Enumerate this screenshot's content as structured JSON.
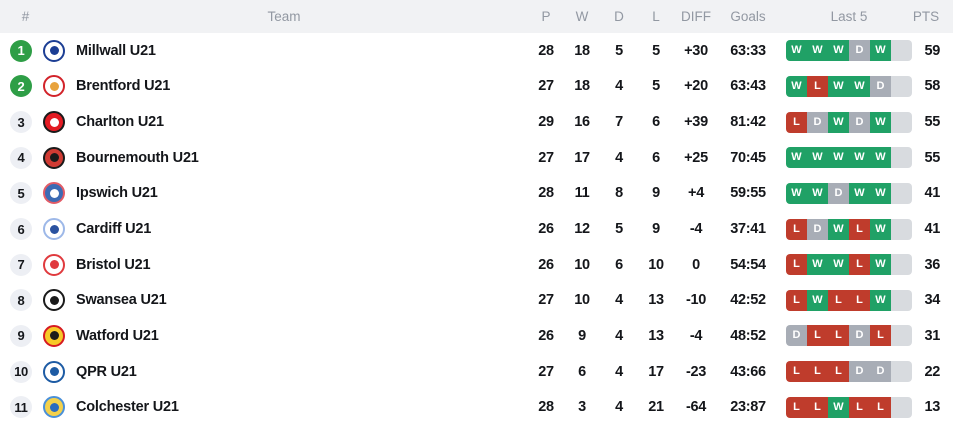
{
  "table": {
    "headers": {
      "rank": "#",
      "team": "Team",
      "played": "P",
      "wins": "W",
      "draws": "D",
      "losses": "L",
      "diff": "DIFF",
      "goals": "Goals",
      "last5": "Last 5",
      "points": "PTS"
    },
    "rows": [
      {
        "rank": "1",
        "promoted": true,
        "team": "Millwall U21",
        "p": "28",
        "w": "18",
        "d": "5",
        "l": "5",
        "diff": "+30",
        "goals": "63:33",
        "last5": [
          "W",
          "W",
          "W",
          "D",
          "W",
          ""
        ],
        "pts": "59",
        "logo": {
          "ring": "#1c3e94",
          "fill": "#ffffff",
          "accent": "#1c3e94"
        }
      },
      {
        "rank": "2",
        "promoted": true,
        "team": "Brentford U21",
        "p": "27",
        "w": "18",
        "d": "4",
        "l": "5",
        "diff": "+20",
        "goals": "63:43",
        "last5": [
          "W",
          "L",
          "W",
          "W",
          "D",
          ""
        ],
        "pts": "58",
        "logo": {
          "ring": "#d2232a",
          "fill": "#ffffff",
          "accent": "#e8a33d"
        }
      },
      {
        "rank": "3",
        "promoted": false,
        "team": "Charlton U21",
        "p": "29",
        "w": "16",
        "d": "7",
        "l": "6",
        "diff": "+39",
        "goals": "81:42",
        "last5": [
          "L",
          "D",
          "W",
          "D",
          "W",
          ""
        ],
        "pts": "55",
        "logo": {
          "ring": "#1a1a1a",
          "fill": "#e31b23",
          "accent": "#ffffff"
        }
      },
      {
        "rank": "4",
        "promoted": false,
        "team": "Bournemouth U21",
        "p": "27",
        "w": "17",
        "d": "4",
        "l": "6",
        "diff": "+25",
        "goals": "70:45",
        "last5": [
          "W",
          "W",
          "W",
          "W",
          "W",
          ""
        ],
        "pts": "55",
        "logo": {
          "ring": "#1a1a1a",
          "fill": "#d03b33",
          "accent": "#1a1a1a"
        }
      },
      {
        "rank": "5",
        "promoted": false,
        "team": "Ipswich U21",
        "p": "28",
        "w": "11",
        "d": "8",
        "l": "9",
        "diff": "+4",
        "goals": "59:55",
        "last5": [
          "W",
          "W",
          "D",
          "W",
          "W",
          ""
        ],
        "pts": "41",
        "logo": {
          "ring": "#e25b66",
          "fill": "#3c6bb4",
          "accent": "#ffffff"
        }
      },
      {
        "rank": "6",
        "promoted": false,
        "team": "Cardiff U21",
        "p": "26",
        "w": "12",
        "d": "5",
        "l": "9",
        "diff": "-4",
        "goals": "37:41",
        "last5": [
          "L",
          "D",
          "W",
          "L",
          "W",
          ""
        ],
        "pts": "41",
        "logo": {
          "ring": "#9db8e8",
          "fill": "#ffffff",
          "accent": "#2a52a0"
        }
      },
      {
        "rank": "7",
        "promoted": false,
        "team": "Bristol U21",
        "p": "26",
        "w": "10",
        "d": "6",
        "l": "10",
        "diff": "0",
        "goals": "54:54",
        "last5": [
          "L",
          "W",
          "W",
          "L",
          "W",
          ""
        ],
        "pts": "36",
        "logo": {
          "ring": "#e03a3e",
          "fill": "#ffffff",
          "accent": "#e03a3e"
        }
      },
      {
        "rank": "8",
        "promoted": false,
        "team": "Swansea U21",
        "p": "27",
        "w": "10",
        "d": "4",
        "l": "13",
        "diff": "-10",
        "goals": "42:52",
        "last5": [
          "L",
          "W",
          "L",
          "L",
          "W",
          ""
        ],
        "pts": "34",
        "logo": {
          "ring": "#1a1a1a",
          "fill": "#ffffff",
          "accent": "#1a1a1a"
        }
      },
      {
        "rank": "9",
        "promoted": false,
        "team": "Watford U21",
        "p": "26",
        "w": "9",
        "d": "4",
        "l": "13",
        "diff": "-4",
        "goals": "48:52",
        "last5": [
          "D",
          "L",
          "L",
          "D",
          "L",
          ""
        ],
        "pts": "31",
        "logo": {
          "ring": "#d61a22",
          "fill": "#f7c928",
          "accent": "#1a1a1a"
        }
      },
      {
        "rank": "10",
        "promoted": false,
        "team": "QPR U21",
        "p": "27",
        "w": "6",
        "d": "4",
        "l": "17",
        "diff": "-23",
        "goals": "43:66",
        "last5": [
          "L",
          "L",
          "L",
          "D",
          "D",
          ""
        ],
        "pts": "22",
        "logo": {
          "ring": "#1d5ba4",
          "fill": "#ffffff",
          "accent": "#1d5ba4"
        }
      },
      {
        "rank": "11",
        "promoted": false,
        "team": "Colchester U21",
        "p": "28",
        "w": "3",
        "d": "4",
        "l": "21",
        "diff": "-64",
        "goals": "23:87",
        "last5": [
          "L",
          "L",
          "W",
          "L",
          "L",
          ""
        ],
        "pts": "13",
        "logo": {
          "ring": "#4a90d9",
          "fill": "#f4d14b",
          "accent": "#2a6bbf"
        }
      }
    ]
  },
  "colors": {
    "win": "#20a166",
    "draw": "#a8adb6",
    "loss": "#bf3c2c",
    "upcoming": "#d8dbdf",
    "promoted": "#2e9e46",
    "header_bg": "#f1f2f4",
    "header_text": "#9298a2",
    "text": "#14161a",
    "rank_bg": "#edeff4"
  }
}
